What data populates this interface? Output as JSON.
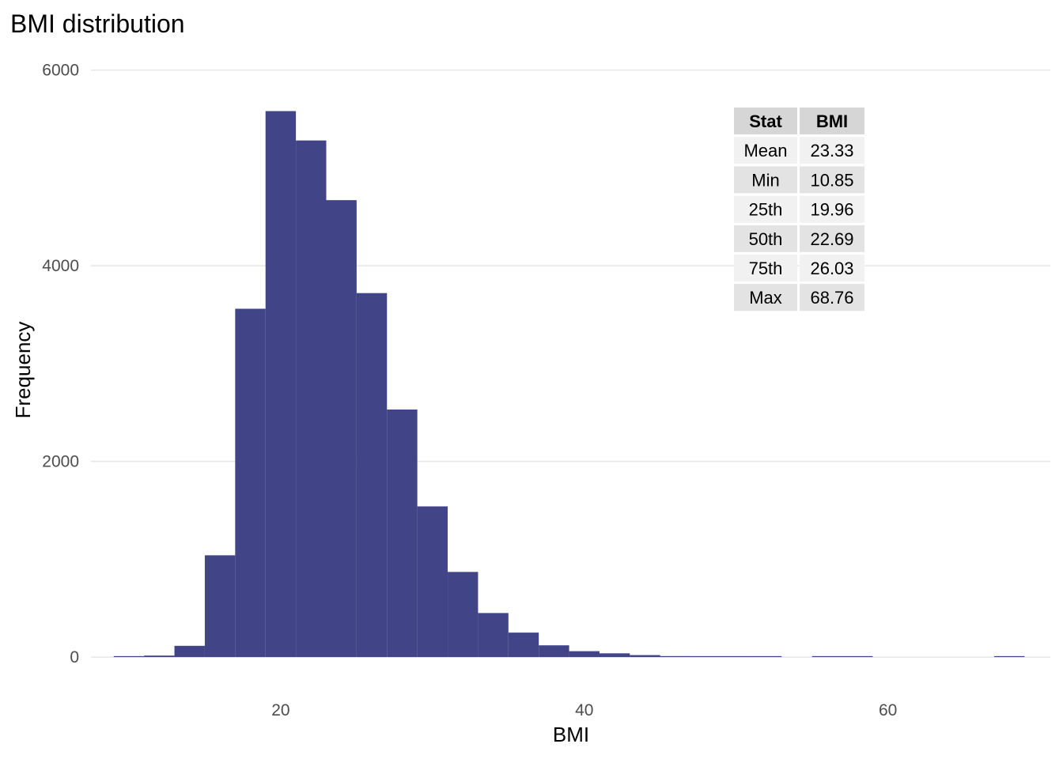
{
  "chart_data": {
    "type": "bar",
    "title": "BMI distribution",
    "xlabel": "BMI",
    "ylabel": "Frequency",
    "xlim": [
      7.5,
      70.7
    ],
    "ylim": [
      -250,
      6150
    ],
    "x_ticks": [
      20,
      40,
      60
    ],
    "y_ticks": [
      0,
      2000,
      4000,
      6000
    ],
    "grid": "horizontal",
    "bin_width": 2,
    "bins": [
      {
        "x_start": 9,
        "x_end": 11,
        "count": 5
      },
      {
        "x_start": 11,
        "x_end": 13,
        "count": 15
      },
      {
        "x_start": 13,
        "x_end": 15,
        "count": 115
      },
      {
        "x_start": 15,
        "x_end": 17,
        "count": 1040
      },
      {
        "x_start": 17,
        "x_end": 19,
        "count": 3560
      },
      {
        "x_start": 19,
        "x_end": 21,
        "count": 5580
      },
      {
        "x_start": 21,
        "x_end": 23,
        "count": 5280
      },
      {
        "x_start": 23,
        "x_end": 25,
        "count": 4670
      },
      {
        "x_start": 25,
        "x_end": 27,
        "count": 3720
      },
      {
        "x_start": 27,
        "x_end": 29,
        "count": 2530
      },
      {
        "x_start": 29,
        "x_end": 31,
        "count": 1540
      },
      {
        "x_start": 31,
        "x_end": 33,
        "count": 870
      },
      {
        "x_start": 33,
        "x_end": 35,
        "count": 450
      },
      {
        "x_start": 35,
        "x_end": 37,
        "count": 250
      },
      {
        "x_start": 37,
        "x_end": 39,
        "count": 120
      },
      {
        "x_start": 39,
        "x_end": 41,
        "count": 60
      },
      {
        "x_start": 41,
        "x_end": 43,
        "count": 38
      },
      {
        "x_start": 43,
        "x_end": 45,
        "count": 20
      },
      {
        "x_start": 45,
        "x_end": 47,
        "count": 10
      },
      {
        "x_start": 47,
        "x_end": 49,
        "count": 6
      },
      {
        "x_start": 49,
        "x_end": 51,
        "count": 4
      },
      {
        "x_start": 51,
        "x_end": 53,
        "count": 3
      },
      {
        "x_start": 55,
        "x_end": 57,
        "count": 2
      },
      {
        "x_start": 57,
        "x_end": 59,
        "count": 2
      },
      {
        "x_start": 67,
        "x_end": 69,
        "count": 2
      }
    ],
    "bar_color": "#414487",
    "summary_table": {
      "header": [
        "Stat",
        "BMI"
      ],
      "rows": [
        [
          "Mean",
          "23.33"
        ],
        [
          "Min",
          "10.85"
        ],
        [
          "25th",
          "19.96"
        ],
        [
          "50th",
          "22.69"
        ],
        [
          "75th",
          "26.03"
        ],
        [
          "Max",
          "68.76"
        ]
      ]
    }
  }
}
